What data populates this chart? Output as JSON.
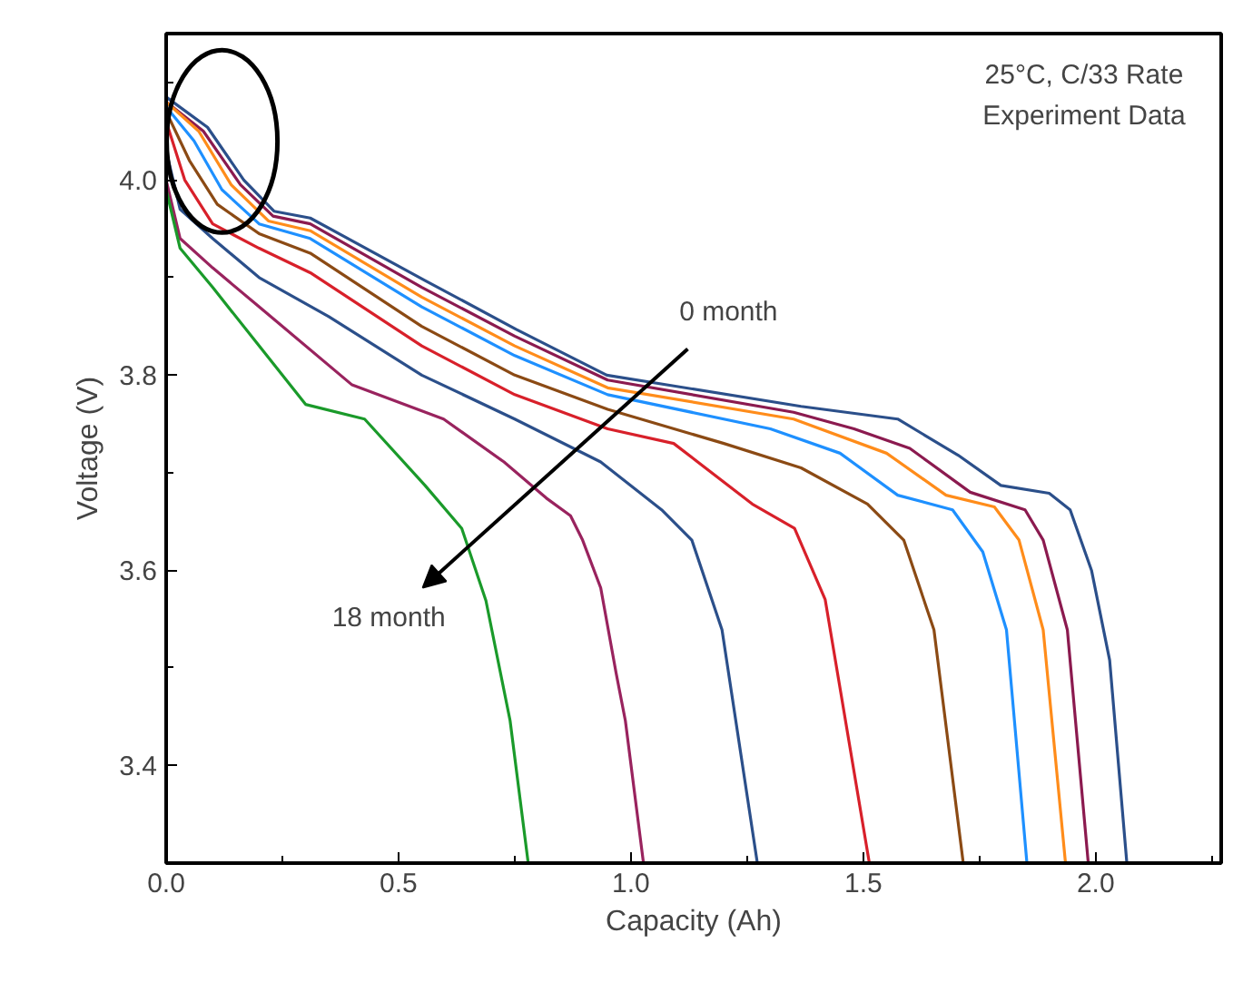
{
  "chart_data": {
    "type": "line",
    "xlabel": "Capacity (Ah)",
    "ylabel": "Voltage (V)",
    "xlim": [
      0,
      2.27
    ],
    "ylim": [
      3.3,
      4.15
    ],
    "xticks": [
      {
        "value": 0,
        "label": "0.0"
      },
      {
        "value": 0.25,
        "label": null
      },
      {
        "value": 0.5,
        "label": "0.5"
      },
      {
        "value": 0.75,
        "label": null
      },
      {
        "value": 1.0,
        "label": "1.0"
      },
      {
        "value": 1.25,
        "label": null
      },
      {
        "value": 1.5,
        "label": "1.5"
      },
      {
        "value": 1.75,
        "label": null
      },
      {
        "value": 2.0,
        "label": "2.0"
      },
      {
        "value": 2.25,
        "label": null
      }
    ],
    "yticks": [
      {
        "value": 3.4,
        "label": "3.4"
      },
      {
        "value": 3.5,
        "label": null
      },
      {
        "value": 3.6,
        "label": "3.6"
      },
      {
        "value": 3.7,
        "label": null
      },
      {
        "value": 3.8,
        "label": "3.8"
      },
      {
        "value": 3.9,
        "label": null
      },
      {
        "value": 4.0,
        "label": "4.0"
      },
      {
        "value": 4.1,
        "label": null
      }
    ],
    "grid": false,
    "marker": "none",
    "line_style": "solid",
    "annotations": [
      "25°C, C/33 Rate",
      "Experiment Data",
      "0 month",
      "18 month"
    ],
    "series": [
      {
        "color": "#2b4f8a",
        "x": [
          0,
          0.089,
          0.167,
          0.232,
          0.31,
          0.557,
          0.753,
          0.948,
          1.366,
          1.574,
          1.704,
          1.796,
          1.9,
          1.945,
          1.991,
          2.03,
          2.067
        ],
        "values": [
          4.085,
          4.054,
          4.0,
          3.968,
          3.961,
          3.897,
          3.847,
          3.8,
          3.768,
          3.755,
          3.718,
          3.687,
          3.679,
          3.662,
          3.6,
          3.508,
          3.3
        ]
      },
      {
        "color": "#8b1a4f",
        "x": [
          0,
          0.08,
          0.16,
          0.23,
          0.31,
          0.55,
          0.75,
          0.95,
          1.35,
          1.48,
          1.6,
          1.73,
          1.848,
          1.887,
          1.939,
          1.984
        ],
        "values": [
          4.08,
          4.05,
          3.995,
          3.963,
          3.955,
          3.89,
          3.84,
          3.795,
          3.762,
          3.745,
          3.725,
          3.68,
          3.662,
          3.631,
          3.539,
          3.3
        ]
      },
      {
        "color": "#ff8c1a",
        "x": [
          0,
          0.07,
          0.14,
          0.22,
          0.31,
          0.55,
          0.75,
          0.95,
          1.35,
          1.55,
          1.678,
          1.782,
          1.835,
          1.887,
          1.935
        ],
        "values": [
          4.08,
          4.05,
          3.995,
          3.958,
          3.948,
          3.88,
          3.83,
          3.787,
          3.755,
          3.72,
          3.677,
          3.665,
          3.631,
          3.539,
          3.3
        ]
      },
      {
        "color": "#1e90ff",
        "x": [
          0,
          0.06,
          0.12,
          0.2,
          0.31,
          0.55,
          0.75,
          0.95,
          1.3,
          1.45,
          1.574,
          1.692,
          1.757,
          1.808,
          1.852
        ],
        "values": [
          4.075,
          4.04,
          3.99,
          3.955,
          3.94,
          3.87,
          3.82,
          3.78,
          3.745,
          3.72,
          3.677,
          3.662,
          3.619,
          3.539,
          3.3
        ]
      },
      {
        "color": "#8b4a14",
        "x": [
          0,
          0.05,
          0.11,
          0.2,
          0.31,
          0.55,
          0.75,
          0.95,
          1.2,
          1.366,
          1.509,
          1.587,
          1.652,
          1.715
        ],
        "values": [
          4.07,
          4.02,
          3.975,
          3.945,
          3.925,
          3.85,
          3.8,
          3.765,
          3.73,
          3.705,
          3.668,
          3.631,
          3.539,
          3.3
        ]
      },
      {
        "color": "#d8202a",
        "x": [
          0,
          0.04,
          0.1,
          0.2,
          0.31,
          0.55,
          0.75,
          0.95,
          1.092,
          1.261,
          1.352,
          1.418,
          1.513
        ],
        "values": [
          4.06,
          4.0,
          3.955,
          3.93,
          3.905,
          3.83,
          3.78,
          3.745,
          3.73,
          3.668,
          3.643,
          3.57,
          3.3
        ]
      },
      {
        "color": "#2b4f8a",
        "x": [
          0,
          0.03,
          0.1,
          0.2,
          0.35,
          0.55,
          0.75,
          0.935,
          1.066,
          1.131,
          1.196,
          1.272
        ],
        "values": [
          4.03,
          3.97,
          3.94,
          3.9,
          3.86,
          3.8,
          3.755,
          3.711,
          3.662,
          3.631,
          3.539,
          3.3
        ]
      },
      {
        "color": "#99235e",
        "x": [
          0,
          0.03,
          0.1,
          0.2,
          0.4,
          0.597,
          0.727,
          0.818,
          0.87,
          0.896,
          0.935,
          0.968,
          0.988,
          1.027
        ],
        "values": [
          4.0,
          3.94,
          3.91,
          3.87,
          3.79,
          3.755,
          3.711,
          3.674,
          3.656,
          3.631,
          3.582,
          3.495,
          3.446,
          3.3
        ]
      },
      {
        "color": "#1a9a2a",
        "x": [
          0,
          0.03,
          0.1,
          0.2,
          0.3,
          0.427,
          0.557,
          0.636,
          0.688,
          0.74,
          0.779
        ],
        "values": [
          3.99,
          3.93,
          3.89,
          3.83,
          3.77,
          3.755,
          3.687,
          3.643,
          3.569,
          3.446,
          3.3
        ]
      }
    ]
  }
}
